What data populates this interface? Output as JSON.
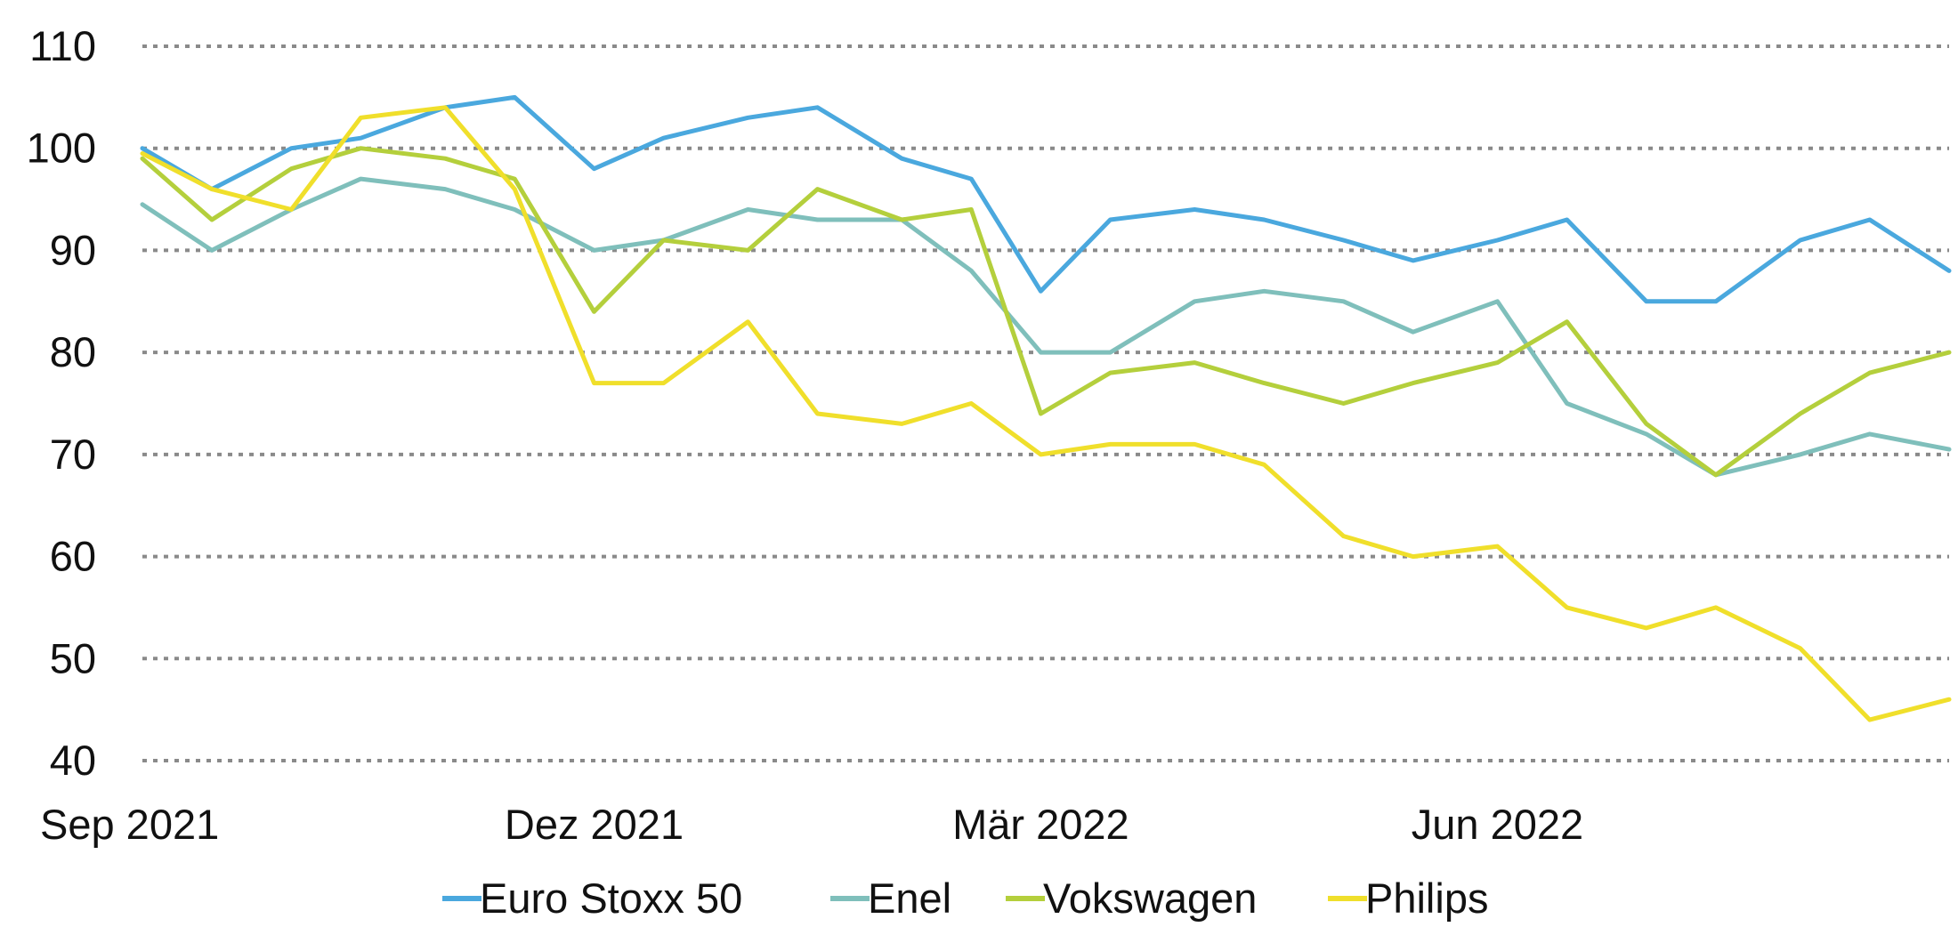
{
  "chart_data": {
    "type": "line",
    "title": "",
    "xlabel": "",
    "ylabel": "",
    "x_tick_labels": [
      "Sep 2021",
      "Dez 2021",
      "Mär 2022",
      "Jun 2022"
    ],
    "x_ticks": [
      "2021-09-01",
      "2021-12-01",
      "2022-03-01",
      "2022-06-01"
    ],
    "x_range": [
      "2021-09-01",
      "2022-08-31"
    ],
    "y_tick_labels": [
      "40",
      "50",
      "60",
      "70",
      "80",
      "90",
      "100",
      "110"
    ],
    "ylim": [
      40,
      110
    ],
    "grid": "horizontal dotted",
    "legend": "bottom-center",
    "x": [
      "2021-09-01",
      "2021-09-15",
      "2021-10-01",
      "2021-10-15",
      "2021-11-01",
      "2021-11-15",
      "2021-12-01",
      "2021-12-15",
      "2022-01-01",
      "2022-01-15",
      "2022-02-01",
      "2022-02-15",
      "2022-03-01",
      "2022-03-15",
      "2022-04-01",
      "2022-04-15",
      "2022-05-01",
      "2022-05-15",
      "2022-06-01",
      "2022-06-15",
      "2022-07-01",
      "2022-07-15",
      "2022-08-01",
      "2022-08-15",
      "2022-08-31"
    ],
    "series": [
      {
        "name": "Euro Stoxx 50",
        "color": "#4aa8de",
        "values": [
          100,
          96,
          100,
          101,
          104,
          105,
          98,
          101,
          103,
          104,
          99,
          97,
          86,
          93,
          94,
          93,
          91,
          89,
          91,
          93,
          85,
          85,
          91,
          93,
          88
        ]
      },
      {
        "name": "Enel",
        "color": "#7fbfbb",
        "values": [
          94.5,
          90,
          94,
          97,
          96,
          94,
          90,
          91,
          94,
          93,
          93,
          88,
          80,
          80,
          85,
          86,
          85,
          82,
          85,
          75,
          72,
          68,
          70,
          72,
          70.5
        ]
      },
      {
        "name": "Vokswagen",
        "color": "#b4cf3c",
        "values": [
          99,
          93,
          98,
          100,
          99,
          97,
          84,
          91,
          90,
          96,
          93,
          94,
          74,
          78,
          79,
          77,
          75,
          77,
          79,
          83,
          73,
          68,
          74,
          78,
          80
        ]
      },
      {
        "name": "Philips",
        "color": "#f0df2b",
        "values": [
          99.5,
          96,
          94,
          103,
          104,
          96,
          77,
          77,
          83,
          74,
          73,
          75,
          70,
          71,
          71,
          69,
          62,
          60,
          61,
          55,
          53,
          55,
          51,
          44,
          46
        ]
      }
    ]
  }
}
